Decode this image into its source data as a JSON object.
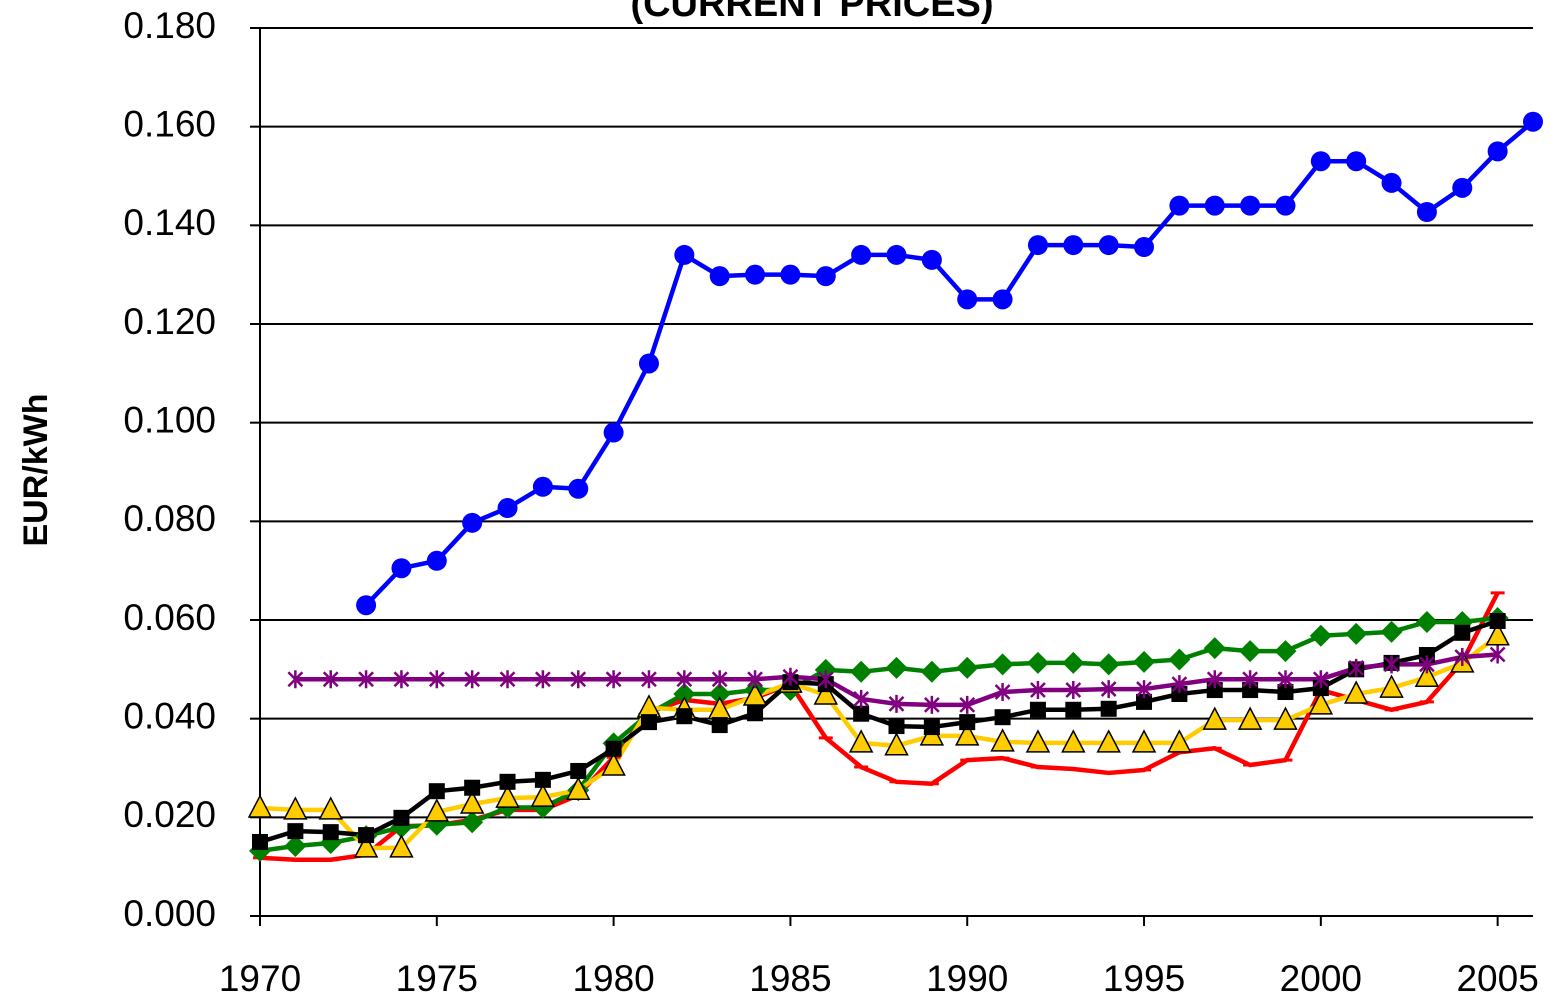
{
  "chart_data": {
    "type": "line",
    "title": "(CURRENT PRICES)",
    "y_label": "EUR/kWh",
    "x": [
      1970,
      1971,
      1972,
      1973,
      1974,
      1975,
      1976,
      1977,
      1978,
      1979,
      1980,
      1981,
      1982,
      1983,
      1984,
      1985,
      1986,
      1987,
      1988,
      1989,
      1990,
      1991,
      1992,
      1993,
      1994,
      1995,
      1996,
      1997,
      1998,
      1999,
      2000,
      2001,
      2002,
      2003,
      2004,
      2005,
      2006
    ],
    "xlim": [
      1970,
      2006
    ],
    "xticks": [
      1970,
      1975,
      1980,
      1985,
      1990,
      1995,
      2000,
      2005
    ],
    "ylim": [
      0,
      0.18
    ],
    "yticks": [
      {
        "value": 0,
        "label": "0.000"
      },
      {
        "value": 0.02,
        "label": "0.020"
      },
      {
        "value": 0.04,
        "label": "0.040"
      },
      {
        "value": 0.06,
        "label": "0.060"
      },
      {
        "value": 0.08,
        "label": "0.080"
      },
      {
        "value": 0.1,
        "label": "0.100"
      },
      {
        "value": 0.12,
        "label": "0.120"
      },
      {
        "value": 0.14,
        "label": "0.140"
      },
      {
        "value": 0.16,
        "label": "0.160"
      },
      {
        "value": 0.18,
        "label": "0.180"
      }
    ],
    "grid": true,
    "series": [
      {
        "color": "#ff0000",
        "marker": "dash",
        "values": [
          0.0118,
          0.0114,
          0.0114,
          0.0124,
          0.0182,
          0.0184,
          0.0195,
          0.0215,
          0.0215,
          0.0245,
          0.0322,
          0.0413,
          0.0438,
          0.043,
          0.0442,
          0.047,
          0.0361,
          0.0302,
          0.0272,
          0.0268,
          0.0316,
          0.032,
          0.0302,
          0.0298,
          0.029,
          0.0296,
          0.0332,
          0.034,
          0.0306,
          0.0316,
          0.0458,
          0.0438,
          0.0418,
          0.0434,
          0.0515,
          0.0655,
          null
        ]
      },
      {
        "color": "#008000",
        "marker": "diamond",
        "values": [
          0.0132,
          0.0142,
          0.0148,
          0.0162,
          0.018,
          0.0185,
          0.019,
          0.022,
          0.022,
          0.0255,
          0.035,
          0.041,
          0.045,
          0.045,
          0.0458,
          0.0458,
          0.0499,
          0.0495,
          0.0503,
          0.0495,
          0.0503,
          0.051,
          0.0513,
          0.0513,
          0.051,
          0.0515,
          0.052,
          0.0543,
          0.0537,
          0.0537,
          0.0568,
          0.0572,
          0.0576,
          0.0596,
          0.0596,
          0.0604,
          null
        ]
      },
      {
        "color": "#ffcc00",
        "marker": "triangle",
        "values": [
          0.0219,
          0.0215,
          0.0215,
          0.0138,
          0.0138,
          0.0211,
          0.0227,
          0.0239,
          0.0241,
          0.0255,
          0.0304,
          0.0422,
          0.0418,
          0.0418,
          0.0446,
          0.0472,
          0.0448,
          0.0351,
          0.0345,
          0.0365,
          0.0365,
          0.0353,
          0.0351,
          0.0351,
          0.0351,
          0.0351,
          0.0351,
          0.0397,
          0.0397,
          0.0397,
          0.0428,
          0.045,
          0.0462,
          0.0484,
          0.0513,
          0.0568,
          null
        ]
      },
      {
        "color": "#000000",
        "marker": "square",
        "values": [
          0.015,
          0.0172,
          0.017,
          0.0164,
          0.0199,
          0.0253,
          0.026,
          0.0272,
          0.0276,
          0.0294,
          0.0339,
          0.0393,
          0.0405,
          0.0387,
          0.0411,
          0.0474,
          0.047,
          0.041,
          0.0385,
          0.0383,
          0.0393,
          0.0403,
          0.0418,
          0.0418,
          0.042,
          0.0434,
          0.045,
          0.0458,
          0.0458,
          0.0454,
          0.0462,
          0.05,
          0.0513,
          0.0529,
          0.0574,
          0.0598,
          null
        ]
      },
      {
        "color": "#800080",
        "marker": "star",
        "values": [
          null,
          0.048,
          0.048,
          0.048,
          0.048,
          0.048,
          0.048,
          0.048,
          0.048,
          0.048,
          0.048,
          0.048,
          0.048,
          0.048,
          0.048,
          0.0485,
          0.048,
          0.044,
          0.043,
          0.0428,
          0.0428,
          0.0454,
          0.0458,
          0.0458,
          0.046,
          0.046,
          0.047,
          0.048,
          0.048,
          0.048,
          0.048,
          0.0503,
          0.051,
          0.051,
          0.0525,
          0.053,
          null
        ]
      },
      {
        "color": "#0000ff",
        "marker": "circle",
        "values": [
          null,
          null,
          null,
          0.063,
          0.0705,
          0.072,
          0.0797,
          0.0827,
          0.087,
          0.0866,
          0.098,
          0.112,
          0.134,
          0.1297,
          0.13,
          0.13,
          0.1297,
          0.134,
          0.134,
          0.133,
          0.125,
          0.125,
          0.136,
          0.136,
          0.136,
          0.1356,
          0.144,
          0.144,
          0.144,
          0.144,
          0.153,
          0.153,
          0.1486,
          0.1427,
          0.1476,
          0.155,
          0.161
        ]
      }
    ]
  }
}
